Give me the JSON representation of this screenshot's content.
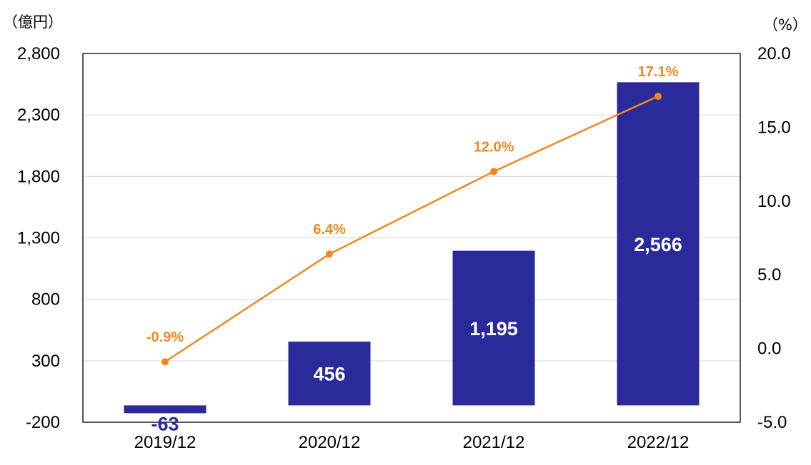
{
  "chart_data": {
    "type": "bar",
    "categories": [
      "2019/12",
      "2020/12",
      "2021/12",
      "2022/12"
    ],
    "left_axis_unit": "（億円）",
    "right_axis_unit": "（%）",
    "left_ticks": [
      "2,800",
      "2,300",
      "1,800",
      "1,300",
      "800",
      "300",
      "-200"
    ],
    "right_ticks": [
      "20.0",
      "15.0",
      "10.0",
      "5.0",
      "0.0",
      "-5.0"
    ],
    "ylim_left": [
      -200,
      2800
    ],
    "ylim_right": [
      -5,
      20
    ],
    "bar_baseline": -63,
    "grid": true,
    "series": [
      {
        "kind": "bar",
        "values": [
          -63,
          456,
          1195,
          2566
        ],
        "labels": [
          "-63",
          "456",
          "1,195",
          "2,566"
        ],
        "axis": "left",
        "color": "#2b2a9b"
      },
      {
        "kind": "line",
        "values": [
          -0.9,
          6.4,
          12.0,
          17.1
        ],
        "labels": [
          "-0.9%",
          "6.4%",
          "12.0%",
          "17.1%"
        ],
        "axis": "right",
        "color": "#f5861f"
      }
    ]
  }
}
